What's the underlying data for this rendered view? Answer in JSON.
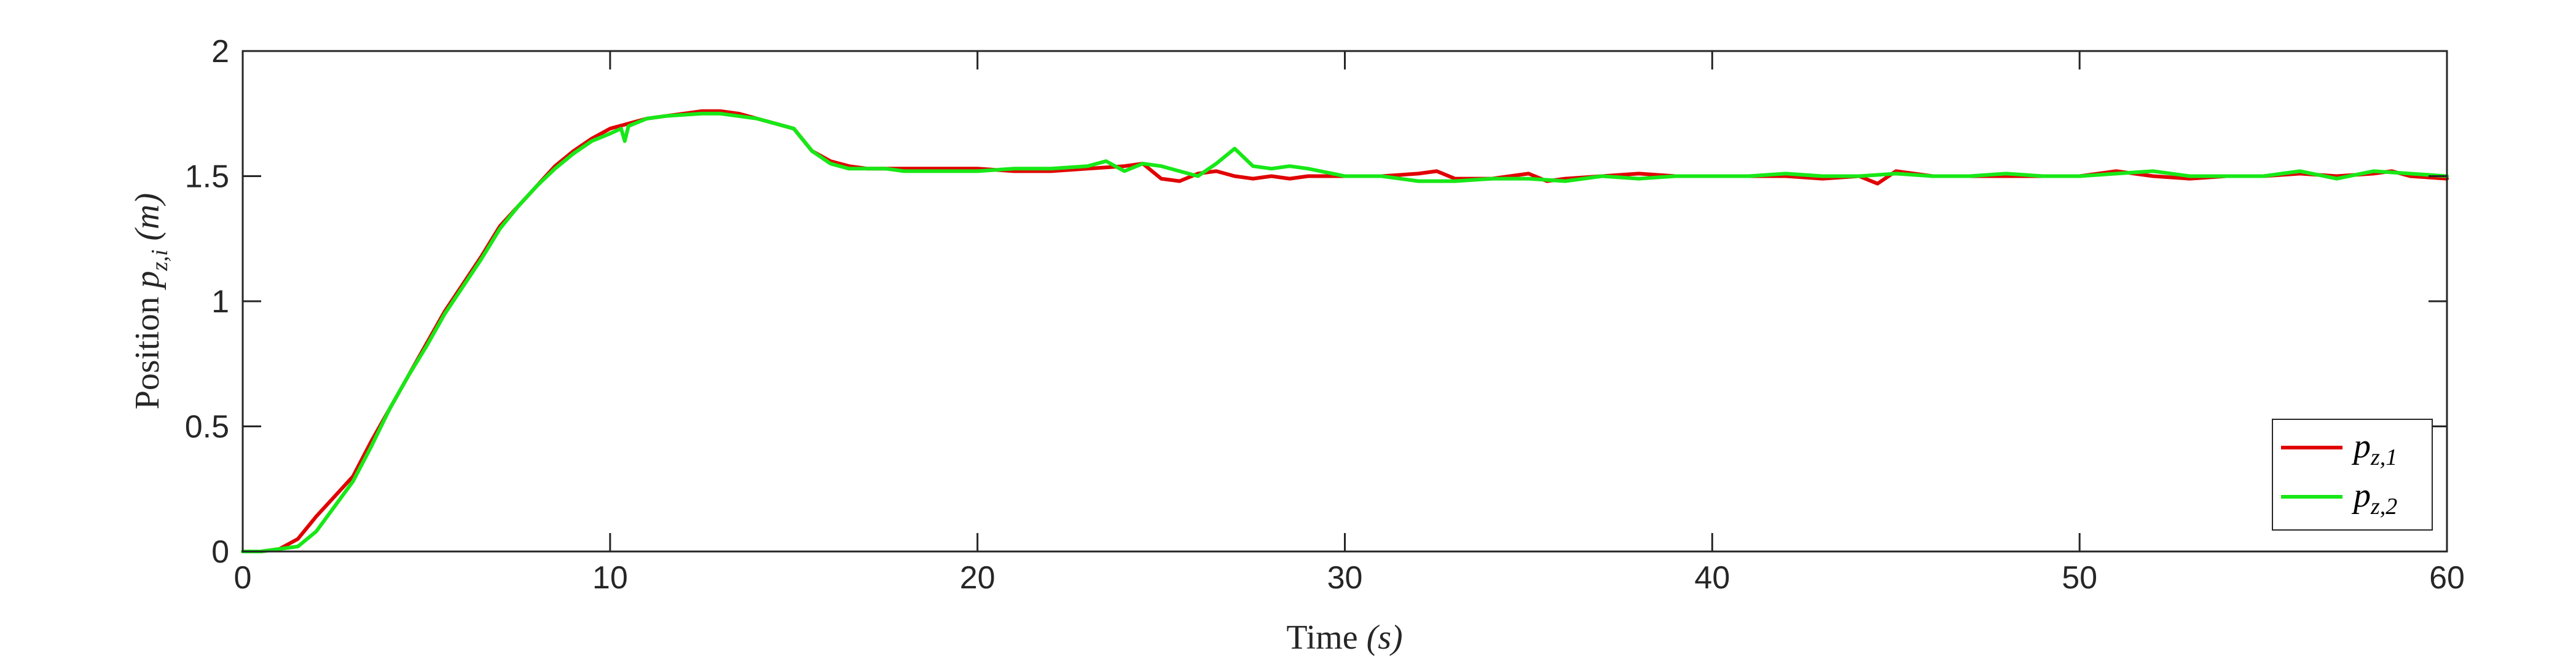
{
  "chart_data": {
    "type": "line",
    "xlabel": {
      "text": "Time ",
      "math": "(s)"
    },
    "ylabel": {
      "text": "Position ",
      "sym": "p",
      "sub": "z,i",
      "math": " (m)"
    },
    "xlim": [
      0,
      60
    ],
    "ylim": [
      0,
      2
    ],
    "xticks": [
      0,
      10,
      20,
      30,
      40,
      50,
      60
    ],
    "yticks": [
      0,
      0.5,
      1,
      1.5,
      2
    ],
    "ytick_labels": [
      "0",
      "0.5",
      "1",
      "1.5",
      "2"
    ],
    "grid": false,
    "legend": {
      "placement": "bottom-right"
    },
    "series": [
      {
        "name": "p_{z,1}",
        "label_sym": "p",
        "label_sub": "z,1",
        "color": "#e00000",
        "x": [
          0,
          0.5,
          1,
          1.5,
          2,
          2.5,
          3,
          3.5,
          4,
          4.5,
          5,
          5.5,
          6,
          6.5,
          7,
          7.5,
          8,
          8.5,
          9,
          9.5,
          10,
          10.5,
          11,
          11.5,
          12,
          12.5,
          13,
          13.5,
          14,
          14.5,
          15,
          15.5,
          16,
          16.5,
          17,
          17.5,
          18,
          18.5,
          19,
          19.5,
          20,
          21,
          22,
          23,
          24,
          24.5,
          25,
          25.5,
          26,
          26.5,
          27,
          27.5,
          28,
          28.5,
          29,
          30,
          31,
          32,
          32.5,
          33,
          34,
          35,
          35.5,
          36,
          37,
          38,
          39,
          40,
          41,
          42,
          43,
          44,
          44.5,
          45,
          46,
          47,
          48,
          49,
          50,
          51,
          52,
          53,
          54,
          55,
          56,
          57,
          58,
          58.5,
          59,
          60
        ],
        "y": [
          0,
          0,
          0.01,
          0.05,
          0.14,
          0.22,
          0.3,
          0.44,
          0.57,
          0.7,
          0.83,
          0.96,
          1.07,
          1.18,
          1.3,
          1.38,
          1.46,
          1.54,
          1.6,
          1.65,
          1.69,
          1.71,
          1.73,
          1.74,
          1.75,
          1.76,
          1.76,
          1.75,
          1.73,
          1.71,
          1.69,
          1.6,
          1.56,
          1.54,
          1.53,
          1.53,
          1.53,
          1.53,
          1.53,
          1.53,
          1.53,
          1.52,
          1.52,
          1.53,
          1.54,
          1.55,
          1.49,
          1.48,
          1.51,
          1.52,
          1.5,
          1.49,
          1.5,
          1.49,
          1.5,
          1.5,
          1.5,
          1.51,
          1.52,
          1.49,
          1.49,
          1.51,
          1.48,
          1.49,
          1.5,
          1.51,
          1.5,
          1.5,
          1.5,
          1.5,
          1.49,
          1.5,
          1.47,
          1.52,
          1.5,
          1.5,
          1.5,
          1.5,
          1.5,
          1.52,
          1.5,
          1.49,
          1.5,
          1.5,
          1.51,
          1.5,
          1.51,
          1.52,
          1.5,
          1.49
        ]
      },
      {
        "name": "p_{z,2}",
        "label_sym": "p",
        "label_sub": "z,2",
        "color": "#17e817",
        "x": [
          0,
          0.5,
          1,
          1.5,
          2,
          2.5,
          3,
          3.5,
          4,
          4.5,
          5,
          5.5,
          6,
          6.5,
          7,
          7.5,
          8,
          8.5,
          9,
          9.5,
          10,
          10.3,
          10.4,
          10.5,
          11,
          11.5,
          12,
          12.5,
          13,
          13.5,
          14,
          14.5,
          15,
          15.5,
          16,
          16.5,
          17,
          17.5,
          18,
          18.5,
          19,
          19.5,
          20,
          21,
          22,
          23,
          23.5,
          24,
          24.5,
          25,
          25.5,
          26,
          26.5,
          27,
          27.5,
          28,
          28.5,
          29,
          30,
          31,
          32,
          33,
          34,
          35,
          36,
          37,
          38,
          39,
          40,
          41,
          42,
          43,
          44,
          45,
          46,
          47,
          48,
          49,
          50,
          51,
          52,
          53,
          54,
          55,
          56,
          57,
          58,
          59,
          60
        ],
        "y": [
          0,
          0,
          0.01,
          0.02,
          0.08,
          0.18,
          0.28,
          0.42,
          0.57,
          0.7,
          0.82,
          0.95,
          1.06,
          1.17,
          1.29,
          1.38,
          1.46,
          1.53,
          1.59,
          1.64,
          1.67,
          1.69,
          1.64,
          1.7,
          1.73,
          1.74,
          1.745,
          1.75,
          1.75,
          1.74,
          1.73,
          1.71,
          1.69,
          1.6,
          1.55,
          1.53,
          1.53,
          1.53,
          1.52,
          1.52,
          1.52,
          1.52,
          1.52,
          1.53,
          1.53,
          1.54,
          1.56,
          1.52,
          1.55,
          1.54,
          1.52,
          1.5,
          1.55,
          1.61,
          1.54,
          1.53,
          1.54,
          1.53,
          1.5,
          1.5,
          1.48,
          1.48,
          1.49,
          1.49,
          1.48,
          1.5,
          1.49,
          1.5,
          1.5,
          1.5,
          1.51,
          1.5,
          1.5,
          1.51,
          1.5,
          1.5,
          1.51,
          1.5,
          1.5,
          1.51,
          1.52,
          1.5,
          1.5,
          1.5,
          1.52,
          1.49,
          1.52,
          1.51,
          1.5
        ]
      }
    ]
  }
}
